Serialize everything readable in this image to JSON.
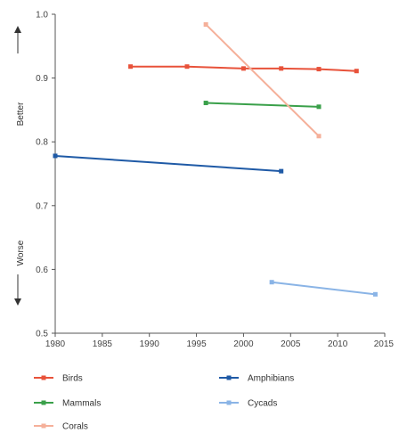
{
  "chart_data": {
    "type": "line",
    "xlim": [
      1980,
      2015
    ],
    "ylim": [
      0.5,
      1.0
    ],
    "x_ticks": [
      1980,
      1985,
      1990,
      1995,
      2000,
      2005,
      2010,
      2015
    ],
    "y_ticks": [
      "0.5",
      "0.6",
      "0.7",
      "0.8",
      "0.9",
      "1.0"
    ],
    "y_top_label": "Better",
    "y_bottom_label": "Worse",
    "grid": false,
    "legend_position": "bottom",
    "series": [
      {
        "name": "Birds",
        "color": "#e8523a",
        "x": [
          1988,
          1994,
          2000,
          2004,
          2008,
          2012
        ],
        "y": [
          0.918,
          0.918,
          0.915,
          0.915,
          0.914,
          0.911
        ]
      },
      {
        "name": "Mammals",
        "color": "#3aa04a",
        "x": [
          1996,
          2008
        ],
        "y": [
          0.861,
          0.855
        ]
      },
      {
        "name": "Corals",
        "color": "#f5b09a",
        "x": [
          1996,
          2008
        ],
        "y": [
          0.984,
          0.809
        ]
      },
      {
        "name": "Amphibians",
        "color": "#1f5aa6",
        "x": [
          1980,
          2004
        ],
        "y": [
          0.778,
          0.754
        ]
      },
      {
        "name": "Cycads",
        "color": "#8ab4e6",
        "x": [
          2003,
          2014
        ],
        "y": [
          0.58,
          0.561
        ]
      }
    ]
  }
}
